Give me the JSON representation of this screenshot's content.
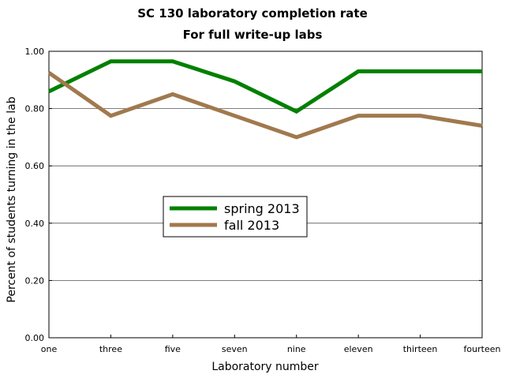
{
  "chart_data": {
    "type": "line",
    "title": "SC 130 laboratory completion rate",
    "subtitle": "For full write-up labs",
    "xlabel": "Laboratory number",
    "ylabel": "Percent of students turning in the lab",
    "categories": [
      "one",
      "three",
      "five",
      "seven",
      "nine",
      "eleven",
      "thirteen",
      "fourteen"
    ],
    "ylim": [
      0,
      1.0
    ],
    "yticks": [
      "0.00",
      "0.20",
      "0.40",
      "0.60",
      "0.80",
      "1.00"
    ],
    "grid": true,
    "legend_position": "center-left",
    "series": [
      {
        "name": "spring 2013",
        "color": "#008000",
        "values": [
          0.86,
          0.965,
          0.965,
          0.895,
          0.79,
          0.93,
          0.93,
          0.93
        ]
      },
      {
        "name": "fall 2013",
        "color": "#a0794e",
        "values": [
          0.925,
          0.775,
          0.85,
          0.775,
          0.7,
          0.775,
          0.775,
          0.74
        ]
      }
    ]
  }
}
